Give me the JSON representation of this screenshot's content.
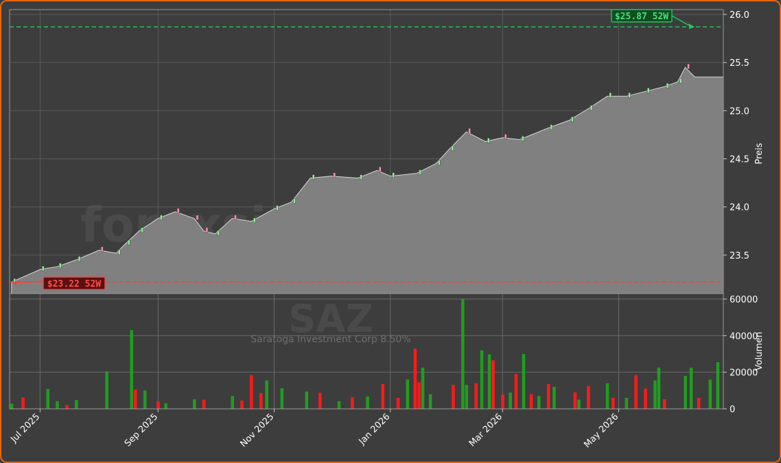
{
  "chart_data": [
    {
      "type": "candlestick-area",
      "panel": "price",
      "ylabel": "Preis",
      "ylim": [
        23.1,
        26.05
      ],
      "yticks": [
        "23.5",
        "24.0",
        "24.5",
        "25.0",
        "25.5",
        "26.0"
      ],
      "x_start": "2025-06-15",
      "x_end": "2026-06-25",
      "high_52w": {
        "value": 25.87,
        "label": "$25.87 52W",
        "date": "2026-06-10",
        "color": "#22c55e"
      },
      "low_52w": {
        "value": 23.22,
        "label": "$23.22 52W",
        "date": "2025-06-16",
        "color": "#ef4444"
      },
      "series": [
        {
          "name": "close",
          "points": [
            [
              "2025-06-16",
              23.22
            ],
            [
              "2025-07-01",
              23.35
            ],
            [
              "2025-07-10",
              23.38
            ],
            [
              "2025-07-20",
              23.45
            ],
            [
              "2025-08-01",
              23.55
            ],
            [
              "2025-08-10",
              23.52
            ],
            [
              "2025-08-15",
              23.62
            ],
            [
              "2025-08-22",
              23.75
            ],
            [
              "2025-09-01",
              23.88
            ],
            [
              "2025-09-10",
              23.95
            ],
            [
              "2025-09-20",
              23.88
            ],
            [
              "2025-09-25",
              23.75
            ],
            [
              "2025-10-01",
              23.72
            ],
            [
              "2025-10-10",
              23.88
            ],
            [
              "2025-10-20",
              23.85
            ],
            [
              "2025-11-01",
              23.98
            ],
            [
              "2025-11-10",
              24.05
            ],
            [
              "2025-11-20",
              24.3
            ],
            [
              "2025-12-01",
              24.32
            ],
            [
              "2025-12-15",
              24.3
            ],
            [
              "2025-12-25",
              24.38
            ],
            [
              "2026-01-01",
              24.32
            ],
            [
              "2026-01-15",
              24.35
            ],
            [
              "2026-01-25",
              24.45
            ],
            [
              "2026-02-01",
              24.6
            ],
            [
              "2026-02-10",
              24.78
            ],
            [
              "2026-02-20",
              24.68
            ],
            [
              "2026-03-01",
              24.72
            ],
            [
              "2026-03-10",
              24.7
            ],
            [
              "2026-03-25",
              24.82
            ],
            [
              "2026-04-05",
              24.9
            ],
            [
              "2026-04-15",
              25.02
            ],
            [
              "2026-04-25",
              25.15
            ],
            [
              "2026-05-05",
              25.15
            ],
            [
              "2026-05-15",
              25.2
            ],
            [
              "2026-05-25",
              25.25
            ],
            [
              "2026-06-01",
              25.3
            ],
            [
              "2026-06-05",
              25.45
            ],
            [
              "2026-06-10",
              25.35
            ],
            [
              "2026-06-25",
              25.35
            ]
          ]
        }
      ]
    },
    {
      "type": "bar",
      "panel": "volume",
      "ylabel": "Volumen",
      "ylim": [
        0,
        63000
      ],
      "yticks": [
        "0",
        "20000",
        "40000",
        "60000"
      ],
      "x_start": "2025-06-15",
      "x_end": "2026-06-25",
      "series": [
        {
          "name": "up",
          "color": "#1f9e1f",
          "points": [
            [
              "2025-06-16",
              2800
            ],
            [
              "2025-07-05",
              10800
            ],
            [
              "2025-07-10",
              4200
            ],
            [
              "2025-07-20",
              4800
            ],
            [
              "2025-08-05",
              20500
            ],
            [
              "2025-08-18",
              43000
            ],
            [
              "2025-08-25",
              10000
            ],
            [
              "2025-09-05",
              3000
            ],
            [
              "2025-09-20",
              5200
            ],
            [
              "2025-10-10",
              7000
            ],
            [
              "2025-10-28",
              15500
            ],
            [
              "2025-11-05",
              11200
            ],
            [
              "2025-11-18",
              9400
            ],
            [
              "2025-12-05",
              4200
            ],
            [
              "2025-12-20",
              6800
            ],
            [
              "2026-01-10",
              16000
            ],
            [
              "2026-01-18",
              22500
            ],
            [
              "2026-01-22",
              8000
            ],
            [
              "2026-02-08",
              60000
            ],
            [
              "2026-02-10",
              13000
            ],
            [
              "2026-02-18",
              32000
            ],
            [
              "2026-02-22",
              29800
            ],
            [
              "2026-03-05",
              8800
            ],
            [
              "2026-03-12",
              30000
            ],
            [
              "2026-03-20",
              7000
            ],
            [
              "2026-03-28",
              12000
            ],
            [
              "2026-04-10",
              5000
            ],
            [
              "2026-04-25",
              14000
            ],
            [
              "2026-05-05",
              6000
            ],
            [
              "2026-05-20",
              15500
            ],
            [
              "2026-05-22",
              22500
            ],
            [
              "2026-06-05",
              18000
            ],
            [
              "2026-06-08",
              22500
            ],
            [
              "2026-06-18",
              16000
            ],
            [
              "2026-06-22",
              25500
            ]
          ]
        },
        {
          "name": "down",
          "color": "#ff1a1a",
          "points": [
            [
              "2025-06-22",
              6200
            ],
            [
              "2025-07-15",
              2000
            ],
            [
              "2025-08-20",
              10500
            ],
            [
              "2025-09-01",
              3900
            ],
            [
              "2025-09-25",
              5000
            ],
            [
              "2025-10-15",
              4500
            ],
            [
              "2025-10-20",
              18500
            ],
            [
              "2025-10-25",
              8500
            ],
            [
              "2025-11-25",
              8700
            ],
            [
              "2025-12-12",
              6200
            ],
            [
              "2025-12-28",
              13500
            ],
            [
              "2026-01-05",
              6000
            ],
            [
              "2026-01-14",
              32800
            ],
            [
              "2026-01-16",
              14500
            ],
            [
              "2026-02-03",
              13000
            ],
            [
              "2026-02-15",
              14000
            ],
            [
              "2026-02-24",
              26500
            ],
            [
              "2026-03-01",
              7800
            ],
            [
              "2026-03-08",
              19000
            ],
            [
              "2026-03-16",
              8000
            ],
            [
              "2026-03-25",
              13500
            ],
            [
              "2026-04-08",
              9000
            ],
            [
              "2026-04-15",
              12500
            ],
            [
              "2026-04-28",
              6000
            ],
            [
              "2026-05-10",
              18500
            ],
            [
              "2026-05-15",
              11000
            ],
            [
              "2026-05-25",
              5200
            ],
            [
              "2026-06-12",
              6000
            ]
          ]
        }
      ]
    }
  ],
  "x_axis": {
    "ticks": [
      {
        "label": "Jul 2025",
        "date": "2025-07-01"
      },
      {
        "label": "Sep 2025",
        "date": "2025-09-01"
      },
      {
        "label": "Nov 2025",
        "date": "2025-11-01"
      },
      {
        "label": "Jan 2026",
        "date": "2026-01-01"
      },
      {
        "label": "Mar 2026",
        "date": "2026-03-01"
      },
      {
        "label": "May 2026",
        "date": "2026-05-01"
      }
    ]
  },
  "watermark": {
    "site": "forexsignale.trade",
    "ticker": "SAZ",
    "name": "Saratoga Investment Corp 8.50%"
  },
  "colors": {
    "background": "#3d3d3d",
    "area": "#808080",
    "border": "#e8640c",
    "candle_up": "#90ee90",
    "candle_down": "#ff8fb0"
  }
}
